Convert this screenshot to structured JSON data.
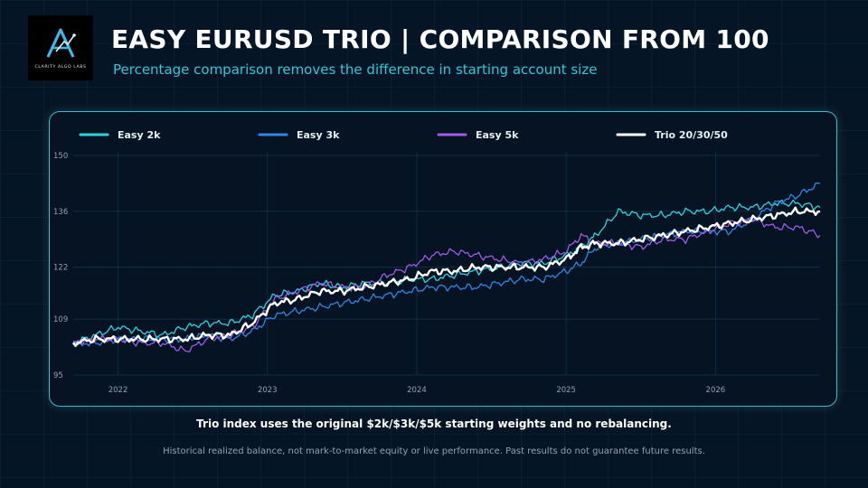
{
  "brand": {
    "logo_text": "CLARITY ALGO LABS"
  },
  "header": {
    "title": "EASY EURUSD TRIO  |  COMPARISON FROM 100",
    "subtitle": "Percentage comparison removes the difference in starting account size"
  },
  "footer": {
    "note": "Trio index uses the original $2k/$3k/$5k starting weights and no rebalancing.",
    "disclaimer": "Historical realized balance, not mark-to-market equity or live performance. Past results do not guarantee future results."
  },
  "chart_data": {
    "type": "line",
    "title": "",
    "xlabel": "",
    "ylabel": "",
    "ylim": [
      95,
      150
    ],
    "yticks": [
      "150",
      "136",
      "122",
      "109",
      "95"
    ],
    "ytick_values": [
      150,
      136,
      122,
      109,
      95
    ],
    "xlim": [
      2021.7,
      2026.7
    ],
    "xticks": [
      "2022",
      "2023",
      "2024",
      "2025",
      "2026"
    ],
    "xtick_values": [
      2022,
      2023,
      2024,
      2025,
      2026
    ],
    "grid": true,
    "legend_position": "top",
    "series": [
      {
        "name": "Easy 2k",
        "color": "#2ad4e0",
        "width": 1.3,
        "x": [
          2021.7,
          2021.85,
          2022,
          2022.15,
          2022.3,
          2022.45,
          2022.6,
          2022.75,
          2022.9,
          2023.05,
          2023.2,
          2023.35,
          2023.5,
          2023.65,
          2023.8,
          2023.95,
          2024.1,
          2024.25,
          2024.4,
          2024.55,
          2024.7,
          2024.85,
          2025,
          2025.1,
          2025.2,
          2025.35,
          2025.5,
          2025.65,
          2025.8,
          2025.95,
          2026.1,
          2026.25,
          2026.4,
          2026.55,
          2026.7
        ],
        "y": [
          103,
          105,
          107,
          106,
          105,
          107,
          108,
          108,
          110,
          115,
          116,
          118,
          117,
          118,
          118,
          119,
          119,
          120,
          121,
          122,
          123,
          123,
          125,
          127,
          130,
          136,
          135,
          135,
          136,
          136,
          137,
          137,
          138,
          138,
          137
        ]
      },
      {
        "name": "Easy 3k",
        "color": "#2f86e6",
        "width": 1.3,
        "x": [
          2021.7,
          2021.85,
          2022,
          2022.15,
          2022.3,
          2022.45,
          2022.6,
          2022.75,
          2022.9,
          2023.05,
          2023.2,
          2023.35,
          2023.5,
          2023.65,
          2023.8,
          2023.95,
          2024.1,
          2024.25,
          2024.4,
          2024.55,
          2024.7,
          2024.85,
          2025,
          2025.1,
          2025.2,
          2025.35,
          2025.5,
          2025.65,
          2025.8,
          2025.95,
          2026.1,
          2026.25,
          2026.4,
          2026.55,
          2026.7
        ],
        "y": [
          103,
          103,
          104,
          104,
          104,
          104,
          105,
          104,
          106,
          110,
          111,
          112,
          113,
          114,
          115,
          116,
          117,
          117,
          117,
          118,
          119,
          119,
          121,
          123,
          127,
          128,
          129,
          130,
          131,
          131,
          131,
          134,
          138,
          140,
          143
        ]
      },
      {
        "name": "Easy 5k",
        "color": "#a05be8",
        "width": 1.3,
        "x": [
          2021.7,
          2021.85,
          2022,
          2022.15,
          2022.3,
          2022.45,
          2022.6,
          2022.75,
          2022.9,
          2023.05,
          2023.2,
          2023.35,
          2023.5,
          2023.65,
          2023.8,
          2023.95,
          2024.1,
          2024.25,
          2024.4,
          2024.55,
          2024.7,
          2024.85,
          2025,
          2025.1,
          2025.2,
          2025.35,
          2025.5,
          2025.65,
          2025.8,
          2025.95,
          2026.1,
          2026.25,
          2026.4,
          2026.55,
          2026.7
        ],
        "y": [
          103,
          104,
          104,
          103,
          103,
          101,
          104,
          105,
          107,
          114,
          116,
          118,
          117,
          117,
          120,
          122,
          125,
          126,
          125,
          124,
          123,
          124,
          126,
          130,
          128,
          128,
          127,
          129,
          129,
          131,
          133,
          134,
          132,
          132,
          130
        ]
      },
      {
        "name": "Trio 20/30/50",
        "color": "#ffffff",
        "width": 2.4,
        "x": [
          2021.7,
          2021.85,
          2022,
          2022.15,
          2022.3,
          2022.45,
          2022.6,
          2022.75,
          2022.9,
          2023.05,
          2023.2,
          2023.35,
          2023.5,
          2023.65,
          2023.8,
          2023.95,
          2024.1,
          2024.25,
          2024.4,
          2024.55,
          2024.7,
          2024.85,
          2025,
          2025.1,
          2025.2,
          2025.35,
          2025.5,
          2025.65,
          2025.8,
          2025.95,
          2026.1,
          2026.25,
          2026.4,
          2026.55,
          2026.7
        ],
        "y": [
          103,
          104,
          104,
          104,
          104,
          104,
          105,
          105,
          108,
          113,
          114,
          116,
          116,
          117,
          118,
          119,
          121,
          121,
          122,
          122,
          122,
          122,
          124,
          127,
          128,
          128,
          129,
          130,
          131,
          132,
          133,
          134,
          135,
          136,
          136
        ]
      }
    ]
  }
}
